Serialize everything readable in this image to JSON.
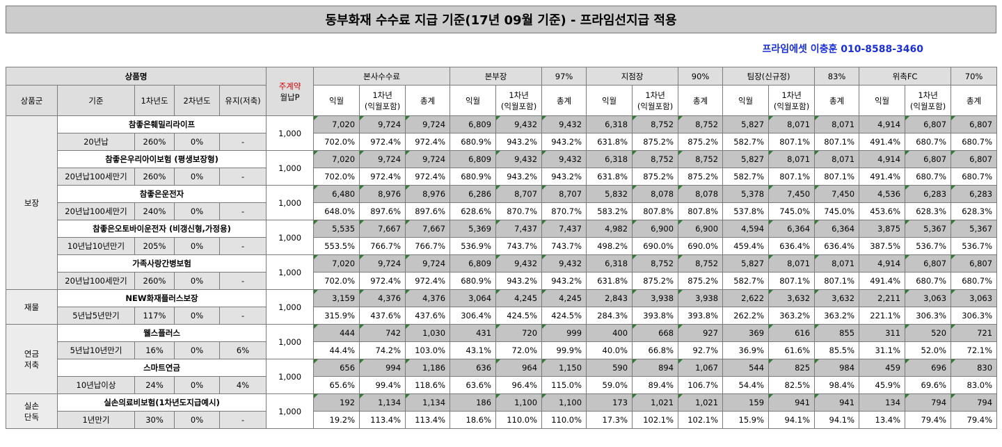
{
  "title": "동부화재 수수료 지급 기준(17년 09월 기준) - 프라임선지급 적용",
  "contact": "프라임에셋 이충훈 010-8588-3460",
  "header": {
    "product_name": "상품명",
    "monthly_premium_top": "주계약",
    "monthly_premium_bottom": "월납P",
    "col_group": "상품군",
    "col_basis": "기준",
    "col_year1": "1차년도",
    "col_year2": "2차년도",
    "col_maintain": "유지(저축)",
    "groups": [
      {
        "label": "본사수수료",
        "pct": ""
      },
      {
        "label": "본부장",
        "pct": "97%"
      },
      {
        "label": "지점장",
        "pct": "90%"
      },
      {
        "label": "팀장(신규정)",
        "pct": "83%"
      },
      {
        "label": "위촉FC",
        "pct": "70%"
      }
    ],
    "sub_month": "익월",
    "sub_year1_a": "1차년",
    "sub_year1_b": "(익월포함)",
    "sub_total": "총계"
  },
  "categories": [
    {
      "name": "보장",
      "products": [
        {
          "name": "참좋은훼밀리라이프",
          "basis": "20년납",
          "y1": "260%",
          "y2": "0%",
          "maint": "-",
          "premium": "1,000",
          "amounts": [
            "7,020",
            "9,724",
            "9,724",
            "6,809",
            "9,432",
            "9,432",
            "6,318",
            "8,752",
            "8,752",
            "5,827",
            "8,071",
            "8,071",
            "4,914",
            "6,807",
            "6,807"
          ],
          "pcts": [
            "702.0%",
            "972.4%",
            "972.4%",
            "680.9%",
            "943.2%",
            "943.2%",
            "631.8%",
            "875.2%",
            "875.2%",
            "582.7%",
            "807.1%",
            "807.1%",
            "491.4%",
            "680.7%",
            "680.7%"
          ]
        },
        {
          "name": "참좋은우리아이보험 (평생보장형)",
          "basis": "20년납100세만기",
          "y1": "260%",
          "y2": "0%",
          "maint": "-",
          "premium": "1,000",
          "amounts": [
            "7,020",
            "9,724",
            "9,724",
            "6,809",
            "9,432",
            "9,432",
            "6,318",
            "8,752",
            "8,752",
            "5,827",
            "8,071",
            "8,071",
            "4,914",
            "6,807",
            "6,807"
          ],
          "pcts": [
            "702.0%",
            "972.4%",
            "972.4%",
            "680.9%",
            "943.2%",
            "943.2%",
            "631.8%",
            "875.2%",
            "875.2%",
            "582.7%",
            "807.1%",
            "807.1%",
            "491.4%",
            "680.7%",
            "680.7%"
          ]
        },
        {
          "name": "참좋은운전자",
          "basis": "20년납100세만기",
          "y1": "240%",
          "y2": "0%",
          "maint": "-",
          "premium": "1,000",
          "amounts": [
            "6,480",
            "8,976",
            "8,976",
            "6,286",
            "8,707",
            "8,707",
            "5,832",
            "8,078",
            "8,078",
            "5,378",
            "7,450",
            "7,450",
            "4,536",
            "6,283",
            "6,283"
          ],
          "pcts": [
            "648.0%",
            "897.6%",
            "897.6%",
            "628.6%",
            "870.7%",
            "870.7%",
            "583.2%",
            "807.8%",
            "807.8%",
            "537.8%",
            "745.0%",
            "745.0%",
            "453.6%",
            "628.3%",
            "628.3%"
          ]
        },
        {
          "name": "참좋은오토바이운전자 (비갱신형,가정용)",
          "basis": "10년납10년만기",
          "y1": "205%",
          "y2": "0%",
          "maint": "-",
          "premium": "1,000",
          "amounts": [
            "5,535",
            "7,667",
            "7,667",
            "5,369",
            "7,437",
            "7,437",
            "4,982",
            "6,900",
            "6,900",
            "4,594",
            "6,364",
            "6,364",
            "3,875",
            "5,367",
            "5,367"
          ],
          "pcts": [
            "553.5%",
            "766.7%",
            "766.7%",
            "536.9%",
            "743.7%",
            "743.7%",
            "498.2%",
            "690.0%",
            "690.0%",
            "459.4%",
            "636.4%",
            "636.4%",
            "387.5%",
            "536.7%",
            "536.7%"
          ]
        },
        {
          "name": "가족사랑간병보험",
          "basis": "20년납100세만기",
          "y1": "260%",
          "y2": "0%",
          "maint": "-",
          "premium": "1,000",
          "amounts": [
            "7,020",
            "9,724",
            "9,724",
            "6,809",
            "9,432",
            "9,432",
            "6,318",
            "8,752",
            "8,752",
            "5,827",
            "8,071",
            "8,071",
            "4,914",
            "6,807",
            "6,807"
          ],
          "pcts": [
            "702.0%",
            "972.4%",
            "972.4%",
            "680.9%",
            "943.2%",
            "943.2%",
            "631.8%",
            "875.2%",
            "875.2%",
            "582.7%",
            "807.1%",
            "807.1%",
            "491.4%",
            "680.7%",
            "680.7%"
          ]
        }
      ]
    },
    {
      "name": "재물",
      "products": [
        {
          "name": "NEW화재플러스보장",
          "basis": "5년납5년만기",
          "y1": "117%",
          "y2": "0%",
          "maint": "-",
          "premium": "1,000",
          "amounts": [
            "3,159",
            "4,376",
            "4,376",
            "3,064",
            "4,245",
            "4,245",
            "2,843",
            "3,938",
            "3,938",
            "2,622",
            "3,632",
            "3,632",
            "2,211",
            "3,063",
            "3,063"
          ],
          "pcts": [
            "315.9%",
            "437.6%",
            "437.6%",
            "306.4%",
            "424.5%",
            "424.5%",
            "284.3%",
            "393.8%",
            "393.8%",
            "262.2%",
            "363.2%",
            "363.2%",
            "221.1%",
            "306.3%",
            "306.3%"
          ]
        }
      ]
    },
    {
      "name": "연금 저축",
      "products": [
        {
          "name": "웰스플러스",
          "basis": "5년납10년만기",
          "y1": "16%",
          "y2": "0%",
          "maint": "6%",
          "premium": "1,000",
          "amounts": [
            "444",
            "742",
            "1,030",
            "431",
            "720",
            "999",
            "400",
            "668",
            "927",
            "369",
            "616",
            "855",
            "311",
            "520",
            "721"
          ],
          "pcts": [
            "44.4%",
            "74.2%",
            "103.0%",
            "43.1%",
            "72.0%",
            "99.9%",
            "40.0%",
            "66.8%",
            "92.7%",
            "36.9%",
            "61.6%",
            "85.5%",
            "31.1%",
            "52.0%",
            "72.1%"
          ]
        },
        {
          "name": "스마트연금",
          "basis": "10년납이상",
          "y1": "24%",
          "y2": "0%",
          "maint": "4%",
          "premium": "1,000",
          "amounts": [
            "656",
            "994",
            "1,186",
            "636",
            "964",
            "1,150",
            "590",
            "894",
            "1,067",
            "544",
            "825",
            "984",
            "459",
            "696",
            "830"
          ],
          "pcts": [
            "65.6%",
            "99.4%",
            "118.6%",
            "63.6%",
            "96.4%",
            "115.0%",
            "59.0%",
            "89.4%",
            "106.7%",
            "54.4%",
            "82.5%",
            "98.4%",
            "45.9%",
            "69.6%",
            "83.0%"
          ]
        }
      ]
    },
    {
      "name": "실손 단독",
      "products": [
        {
          "name": "실손의료비보험(1차년도지급예시)",
          "basis": "1년만기",
          "y1": "30%",
          "y2": "0%",
          "maint": "-",
          "premium": "1,000",
          "amounts": [
            "192",
            "1,134",
            "1,134",
            "186",
            "1,100",
            "1,100",
            "173",
            "1,021",
            "1,021",
            "159",
            "941",
            "941",
            "134",
            "794",
            "794"
          ],
          "pcts": [
            "19.2%",
            "113.4%",
            "113.4%",
            "18.6%",
            "110.0%",
            "110.0%",
            "17.3%",
            "102.1%",
            "102.1%",
            "15.9%",
            "94.1%",
            "94.1%",
            "13.4%",
            "79.4%",
            "79.4%"
          ]
        }
      ]
    }
  ]
}
